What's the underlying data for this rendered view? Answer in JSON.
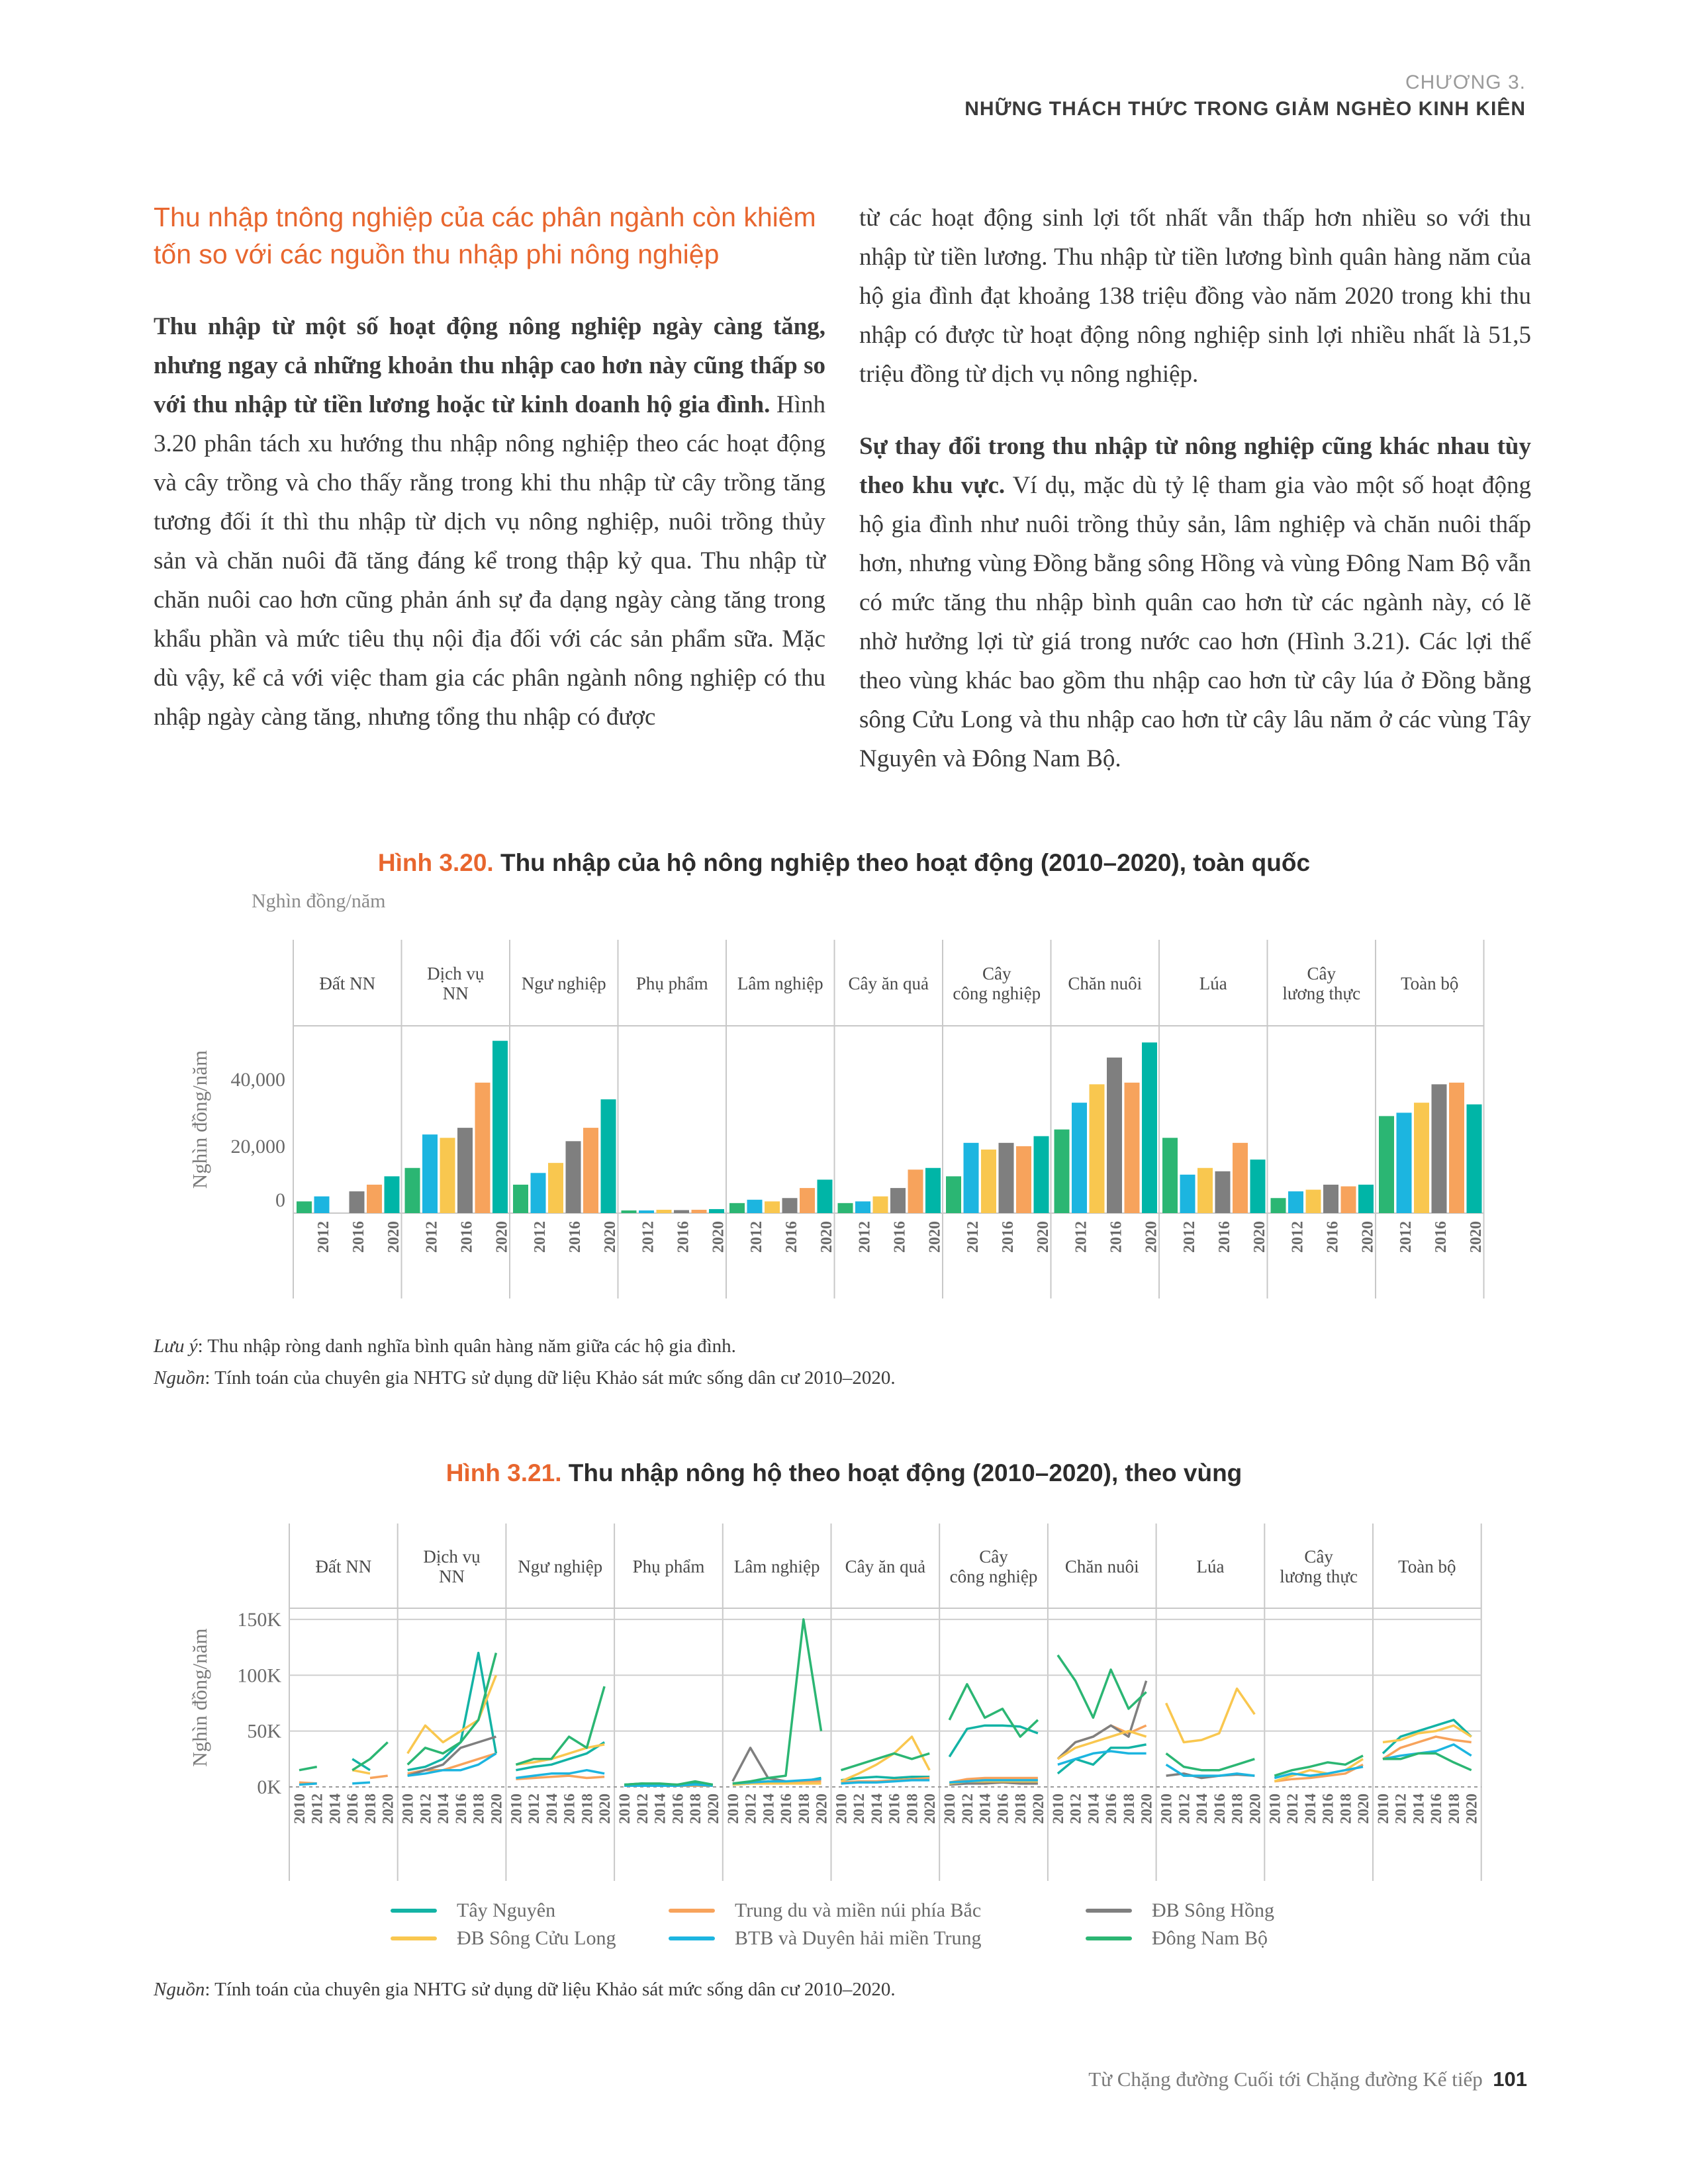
{
  "header": {
    "chapter": "CHƯƠNG 3.",
    "title": "NHỮNG THÁCH THỨC TRONG GIẢM NGHÈO KINH KIÊN"
  },
  "left_column": {
    "section_title": "Thu nhập tnông nghiệp của các phân ngành còn khiêm tốn so với các nguồn thu nhập phi nông nghiệp",
    "para1_bold": "Thu nhập từ một số hoạt động nông nghiệp ngày càng tăng, nhưng ngay cả những khoản thu nhập cao hơn này cũng thấp so với thu nhập từ tiền lương hoặc từ kinh doanh hộ gia đình.",
    "para1_rest": " Hình 3.20 phân tách xu hướng thu nhập nông nghiệp theo các hoạt động và cây trồng và cho thấy rằng trong khi thu nhập từ cây trồng tăng tương đối ít thì thu nhập từ dịch vụ nông nghiệp, nuôi trồng thủy sản và chăn nuôi đã tăng đáng kể trong thập kỷ qua. Thu nhập từ chăn nuôi cao hơn cũng phản ánh sự đa dạng ngày càng tăng trong khẩu phần và mức tiêu thụ nội địa đối với các sản phẩm sữa. Mặc dù vậy, kể cả với việc tham gia các phân ngành nông nghiệp có thu nhập ngày càng tăng, nhưng tổng thu nhập có được"
  },
  "right_column": {
    "para1": "từ các hoạt động sinh lợi tốt nhất vẫn thấp hơn nhiều so với thu nhập từ tiền lương. Thu nhập từ tiền lương bình quân hàng năm của hộ gia đình đạt khoảng 138 triệu đồng vào năm 2020 trong khi thu nhập có được từ hoạt động nông nghiệp sinh lợi nhiều nhất là 51,5 triệu đồng từ dịch vụ nông nghiệp.",
    "para2_bold": "Sự thay đổi trong thu nhập từ nông nghiệp cũng khác nhau tùy theo khu vực.",
    "para2_rest": " Ví dụ, mặc dù tỷ lệ tham gia vào một số hoạt động hộ gia đình như nuôi trồng thủy sản, lâm nghiệp và chăn nuôi thấp hơn, nhưng vùng Đồng bằng sông Hồng và vùng Đông Nam Bộ vẫn có mức tăng thu nhập bình quân cao hơn từ các ngành này, có lẽ nhờ hưởng lợi từ giá trong nước cao hơn (Hình 3.21). Các lợi thế theo vùng khác bao gồm thu nhập cao hơn từ cây lúa ở Đồng bằng sông Cửu Long và thu nhập cao hơn từ cây lâu năm ở các vùng Tây Nguyên và Đông Nam Bộ."
  },
  "figure1": {
    "number": "Hình 3.20.",
    "title": " Thu nhập của hộ nông nghiệp theo hoạt động (2010–2020), toàn quốc",
    "unit_top": "Nghìn đồng/năm"
  },
  "figure1_note": {
    "label": "Lưu ý",
    "text": ": Thu nhập ròng danh nghĩa bình quân hàng năm giữa các hộ gia đình."
  },
  "figure1_source": {
    "label": "Nguồn",
    "text": ": Tính toán của chuyên gia NHTG sử dụng dữ liệu Khảo sát mức sống dân cư 2010–2020."
  },
  "figure2": {
    "number": "Hình 3.21.",
    "title": " Thu nhập nông hộ theo hoạt động (2010–2020), theo vùng"
  },
  "figure2_source": {
    "label": "Nguồn",
    "text": ": Tính toán của chuyên gia NHTG sử dụng dữ liệu Khảo sát mức sống dân cư 2010–2020."
  },
  "footer": {
    "text": "Từ Chặng đường Cuối tới Chặng đường Kế tiếp",
    "page": "101"
  },
  "chart_data": [
    {
      "type": "bar",
      "panels": [
        "Đất NN",
        "Dịch vụ NN",
        "Ngư nghiệp",
        "Phụ phẩm",
        "Lâm nghiệp",
        "Cây ăn quả",
        "Cây công nghiệp",
        "Chăn nuôi",
        "Lúa",
        "Cây lương thực",
        "Toàn bộ"
      ],
      "panel_labels": [
        [
          "Đất NN"
        ],
        [
          "Dịch vụ",
          "NN"
        ],
        [
          "Ngư nghiệp"
        ],
        [
          "Phụ phẩm"
        ],
        [
          "Lâm nghiệp"
        ],
        [
          "Cây ăn quả"
        ],
        [
          "Cây",
          "công nghiệp"
        ],
        [
          "Chăn nuôi"
        ],
        [
          "Lúa"
        ],
        [
          "Cây",
          "lương thực"
        ],
        [
          "Toàn bộ"
        ]
      ],
      "years": [
        "2010",
        "2012",
        "2014",
        "2016",
        "2018",
        "2020"
      ],
      "tick_years": [
        "2012",
        "2016",
        "2020"
      ],
      "bar_colors": [
        "#2bb673",
        "#1cb5e0",
        "#f9c74f",
        "#7f7f7f",
        "#f7a35c",
        "#00b5a7"
      ],
      "values": [
        [
          3500,
          5000,
          null,
          6500,
          8500,
          11000
        ],
        [
          13500,
          23500,
          22500,
          25500,
          39000,
          51500
        ],
        [
          8500,
          12000,
          15000,
          21500,
          25500,
          34000
        ],
        [
          800,
          800,
          1000,
          900,
          1000,
          1200
        ],
        [
          3000,
          4000,
          3500,
          4500,
          7500,
          10000
        ],
        [
          3000,
          3500,
          5000,
          7500,
          13000,
          13500
        ],
        [
          11000,
          21000,
          19000,
          21000,
          20000,
          23000
        ],
        [
          25000,
          33000,
          38500,
          46500,
          39000,
          51000
        ],
        [
          22500,
          11500,
          13500,
          12500,
          21000,
          16000
        ],
        [
          4500,
          6500,
          7000,
          8500,
          8000,
          8500
        ],
        [
          29000,
          30000,
          33000,
          38500,
          39000,
          32500
        ]
      ],
      "ylabel": "Nghìn đồng/năm",
      "yticks": [
        "0",
        "20,000",
        "40,000"
      ],
      "ylim": [
        0,
        54000
      ]
    },
    {
      "type": "line",
      "panels": [
        "Đất NN",
        "Dịch vụ NN",
        "Ngư nghiệp",
        "Phụ phẩm",
        "Lâm nghiệp",
        "Cây ăn quả",
        "Cây công nghiệp",
        "Chăn nuôi",
        "Lúa",
        "Cây lương thực",
        "Toàn bộ"
      ],
      "panel_labels": [
        [
          "Đất NN"
        ],
        [
          "Dịch vụ",
          "NN"
        ],
        [
          "Ngư nghiệp"
        ],
        [
          "Phụ phẩm"
        ],
        [
          "Lâm nghiệp"
        ],
        [
          "Cây ăn quả"
        ],
        [
          "Cây",
          "công nghiệp"
        ],
        [
          "Chăn nuôi"
        ],
        [
          "Lúa"
        ],
        [
          "Cây",
          "lương thực"
        ],
        [
          "Toàn bộ"
        ]
      ],
      "x": [
        "2010",
        "2012",
        "2014",
        "2016",
        "2018",
        "2020"
      ],
      "ylabel": "Nghìn đồng/năm",
      "yticks": [
        "0K",
        "50K",
        "100K",
        "150K"
      ],
      "ylim": [
        0,
        160000
      ],
      "series": [
        {
          "name": "Tây Nguyên",
          "color": "#13b3a5",
          "values": [
            [
              null,
              null,
              null,
              25000,
              15000,
              null
            ],
            [
              15000,
              18000,
              25000,
              40000,
              120000,
              30000
            ],
            [
              15000,
              18000,
              20000,
              25000,
              30000,
              40000
            ],
            [
              2000,
              3000,
              2000,
              2000,
              3000,
              2000
            ],
            [
              2000,
              3000,
              5000,
              4000,
              5000,
              8000
            ],
            [
              6000,
              8000,
              9000,
              8000,
              9000,
              9000
            ],
            [
              27000,
              52000,
              55000,
              55000,
              54000,
              48000
            ],
            [
              12000,
              25000,
              20000,
              35000,
              35000,
              38000
            ],
            [
              null,
              null,
              null,
              null,
              null,
              null
            ],
            [
              null,
              null,
              null,
              null,
              null,
              null
            ],
            [
              30000,
              45000,
              50000,
              55000,
              60000,
              45000
            ]
          ]
        },
        {
          "name": "Trung du và miền núi phía Bắc",
          "color": "#f7a35c",
          "values": [
            [
              4000,
              3000,
              null,
              null,
              8000,
              10000
            ],
            [
              12000,
              15000,
              15000,
              20000,
              25000,
              30000
            ],
            [
              7000,
              8000,
              9000,
              10000,
              8000,
              9000
            ],
            [
              1000,
              1000,
              1000,
              1000,
              1000,
              1000
            ],
            [
              3000,
              4000,
              5000,
              4000,
              5000,
              5000
            ],
            [
              4000,
              5000,
              5000,
              6000,
              7000,
              8000
            ],
            [
              4000,
              7000,
              8000,
              8000,
              8000,
              8000
            ],
            [
              25000,
              40000,
              45000,
              55000,
              48000,
              55000
            ],
            [
              null,
              null,
              null,
              null,
              null,
              null
            ],
            [
              5000,
              7000,
              8000,
              10000,
              12000,
              20000
            ],
            [
              25000,
              35000,
              40000,
              45000,
              42000,
              40000
            ]
          ]
        },
        {
          "name": "ĐB Sông Hồng",
          "color": "#7f7f7f",
          "values": [
            [
              null,
              null,
              null,
              null,
              null,
              null
            ],
            [
              10000,
              15000,
              20000,
              35000,
              40000,
              45000
            ],
            [
              null,
              null,
              null,
              null,
              null,
              null
            ],
            [
              null,
              null,
              null,
              null,
              null,
              null
            ],
            [
              5000,
              35000,
              8000,
              5000,
              null,
              52000
            ],
            [
              null,
              null,
              null,
              null,
              null,
              null
            ],
            [
              2000,
              3000,
              3000,
              4000,
              3000,
              3000
            ],
            [
              25000,
              40000,
              45000,
              55000,
              45000,
              95000
            ],
            [
              10000,
              12000,
              8000,
              10000,
              11000,
              10000
            ],
            [
              null,
              null,
              null,
              null,
              null,
              null
            ],
            [
              null,
              null,
              null,
              null,
              null,
              null
            ]
          ]
        },
        {
          "name": "ĐB Sông Cửu Long",
          "color": "#f9c74f",
          "values": [
            [
              null,
              null,
              null,
              15000,
              12000,
              null
            ],
            [
              30000,
              55000,
              40000,
              50000,
              60000,
              100000
            ],
            [
              20000,
              22000,
              25000,
              30000,
              35000,
              38000
            ],
            [
              null,
              null,
              null,
              null,
              null,
              null
            ],
            [
              2000,
              3000,
              3000,
              3000,
              3000,
              3000
            ],
            [
              5000,
              12000,
              20000,
              30000,
              45000,
              15000
            ],
            [
              3000,
              5000,
              5000,
              5000,
              5000,
              5000
            ],
            [
              25000,
              35000,
              40000,
              45000,
              50000,
              45000
            ],
            [
              75000,
              40000,
              42000,
              48000,
              88000,
              65000
            ],
            [
              5000,
              10000,
              15000,
              12000,
              15000,
              25000
            ],
            [
              40000,
              42000,
              48000,
              50000,
              55000,
              45000
            ]
          ]
        },
        {
          "name": "BTB và Duyên hải miền Trung",
          "color": "#1cb5e0",
          "values": [
            [
              2000,
              3000,
              null,
              3000,
              4000,
              null
            ],
            [
              10000,
              12000,
              15000,
              15000,
              20000,
              30000
            ],
            [
              8000,
              10000,
              12000,
              12000,
              15000,
              12000
            ],
            [
              1000,
              1000,
              1000,
              1000,
              2000,
              1000
            ],
            [
              3000,
              4000,
              5000,
              5000,
              6000,
              7000
            ],
            [
              3000,
              4000,
              4000,
              5000,
              6000,
              6000
            ],
            [
              4000,
              5000,
              6000,
              6000,
              6000,
              6000
            ],
            [
              20000,
              25000,
              30000,
              32000,
              30000,
              30000
            ],
            [
              20000,
              10000,
              10000,
              10000,
              12000,
              10000
            ],
            [
              8000,
              12000,
              10000,
              12000,
              15000,
              18000
            ],
            [
              25000,
              28000,
              30000,
              32000,
              38000,
              28000
            ]
          ]
        },
        {
          "name": "Đông Nam Bộ",
          "color": "#2bb673",
          "values": [
            [
              15000,
              18000,
              null,
              15000,
              25000,
              40000
            ],
            [
              20000,
              35000,
              30000,
              40000,
              60000,
              120000
            ],
            [
              20000,
              25000,
              25000,
              45000,
              35000,
              90000
            ],
            [
              2000,
              3000,
              3000,
              2000,
              5000,
              2000
            ],
            [
              3000,
              5000,
              8000,
              10000,
              150000,
              50000
            ],
            [
              15000,
              20000,
              25000,
              30000,
              25000,
              30000
            ],
            [
              60000,
              92000,
              62000,
              70000,
              45000,
              60000
            ],
            [
              118000,
              95000,
              62000,
              105000,
              70000,
              85000
            ],
            [
              30000,
              18000,
              15000,
              15000,
              20000,
              25000
            ],
            [
              10000,
              15000,
              18000,
              22000,
              20000,
              28000
            ],
            [
              25000,
              25000,
              30000,
              30000,
              22000,
              15000
            ]
          ]
        }
      ]
    }
  ]
}
